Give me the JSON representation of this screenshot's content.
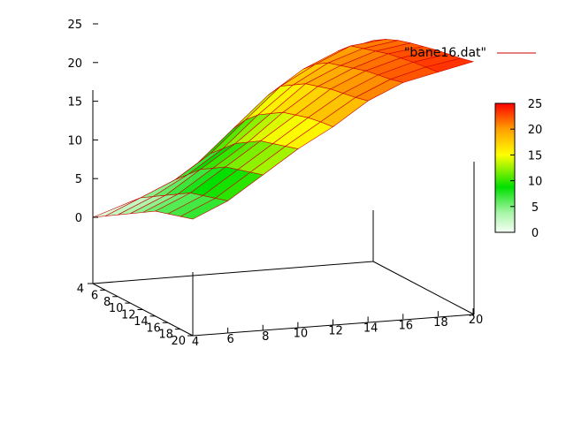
{
  "chart_data": {
    "type": "surface3d",
    "title": "",
    "xlabel": "",
    "ylabel": "",
    "zlabel": "",
    "x_ticks": [
      "4",
      "6",
      "8",
      "10",
      "12",
      "14",
      "16",
      "18",
      "20"
    ],
    "y_ticks": [
      "4",
      "6",
      "8",
      "10",
      "12",
      "14",
      "16",
      "18",
      "20"
    ],
    "z_ticks": [
      "0",
      "5",
      "10",
      "15",
      "20",
      "25"
    ],
    "colorbar_ticks": [
      "0",
      "5",
      "10",
      "15",
      "20",
      "25"
    ],
    "x_range": [
      4,
      20
    ],
    "y_range": [
      4,
      20
    ],
    "z_range": [
      0,
      25
    ],
    "grid": false,
    "legend": {
      "position": "top-right",
      "label": "\"bane16.dat\"",
      "line_color": "#cc0000"
    },
    "series": [
      {
        "name": "\"bane16.dat\"",
        "x": [
          4,
          6,
          8,
          10,
          12,
          14,
          16,
          18,
          20
        ],
        "y": [
          4,
          6,
          8,
          10,
          12,
          14,
          16,
          18,
          20
        ],
        "z": [
          [
            0.0,
            1.0,
            2.0,
            3.0,
            4.0,
            5.0,
            5.5,
            6.0,
            6.5
          ],
          [
            1.5,
            3.0,
            4.0,
            5.0,
            6.0,
            7.0,
            7.5,
            8.0,
            8.5
          ],
          [
            3.0,
            5.0,
            6.5,
            8.0,
            9.0,
            10.0,
            10.5,
            11.0,
            11.5
          ],
          [
            6.0,
            8.0,
            9.5,
            11.0,
            12.0,
            13.0,
            13.5,
            14.0,
            14.5
          ],
          [
            10.0,
            12.0,
            13.5,
            14.5,
            15.5,
            16.0,
            16.5,
            16.8,
            17.0
          ],
          [
            14.0,
            16.0,
            17.0,
            18.0,
            18.5,
            19.0,
            19.3,
            19.6,
            20.0
          ],
          [
            17.0,
            18.5,
            19.5,
            20.0,
            20.5,
            21.0,
            21.3,
            21.6,
            22.0
          ],
          [
            19.0,
            20.5,
            21.0,
            21.5,
            22.0,
            22.3,
            22.6,
            22.8,
            23.0
          ],
          [
            20.0,
            21.0,
            21.7,
            22.2,
            22.6,
            23.0,
            23.3,
            23.6,
            24.0
          ]
        ]
      }
    ],
    "colormap": {
      "low": "#f5fff5",
      "mid_green": "#00e000",
      "mid_yellow": "#ffff00",
      "high": "#ff0000"
    }
  }
}
